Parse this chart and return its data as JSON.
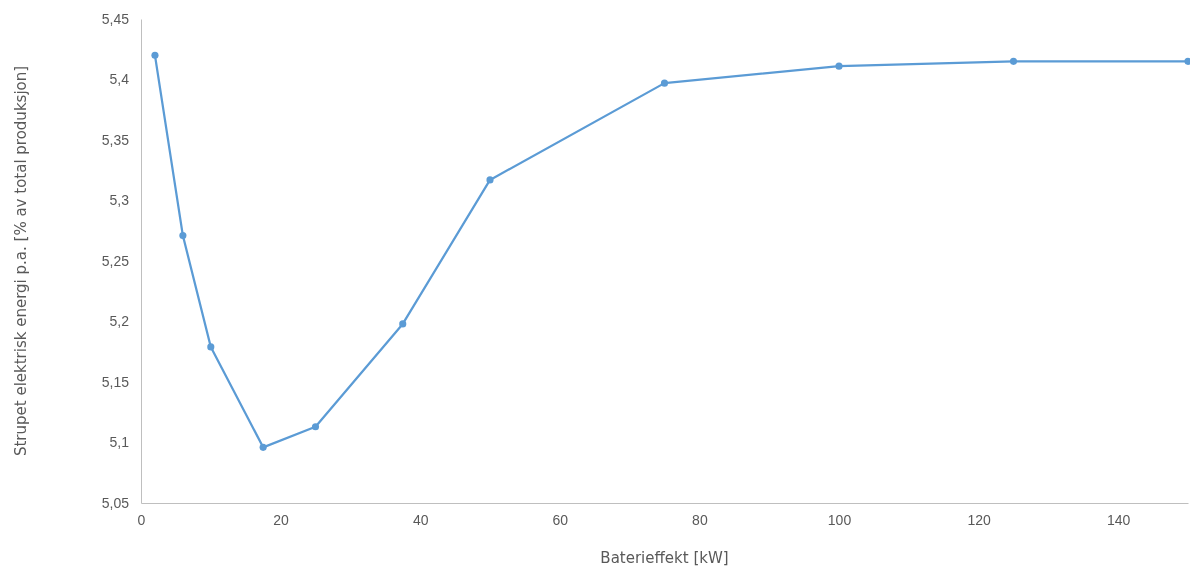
{
  "chart_data": {
    "type": "line",
    "xlabel": "Baterieffekt [kW]",
    "ylabel": "Strupet elektrisk energi p.a. [% av total produksjon]",
    "x": [
      2,
      6,
      10,
      17.5,
      25,
      37.5,
      50,
      75,
      100,
      125,
      150
    ],
    "series": [
      {
        "color": "#5b9bd5",
        "values": [
          5.42,
          5.271,
          5.179,
          5.096,
          5.113,
          5.198,
          5.317,
          5.397,
          5.411,
          5.415,
          5.415
        ]
      }
    ],
    "xlim": [
      0,
      150
    ],
    "xticks": [
      0,
      20,
      40,
      60,
      80,
      100,
      120,
      140
    ],
    "ylim": [
      5.05,
      5.45
    ],
    "yticks": [
      {
        "value": 5.05,
        "label": "5,05"
      },
      {
        "value": 5.1,
        "label": "5,1"
      },
      {
        "value": 5.15,
        "label": "5,15"
      },
      {
        "value": 5.2,
        "label": "5,2"
      },
      {
        "value": 5.25,
        "label": "5,25"
      },
      {
        "value": 5.3,
        "label": "5,3"
      },
      {
        "value": 5.35,
        "label": "5,35"
      },
      {
        "value": 5.4,
        "label": "5,4"
      },
      {
        "value": 5.45,
        "label": "5,45"
      }
    ],
    "grid": false,
    "marker": "circle",
    "line_style": "solid"
  }
}
